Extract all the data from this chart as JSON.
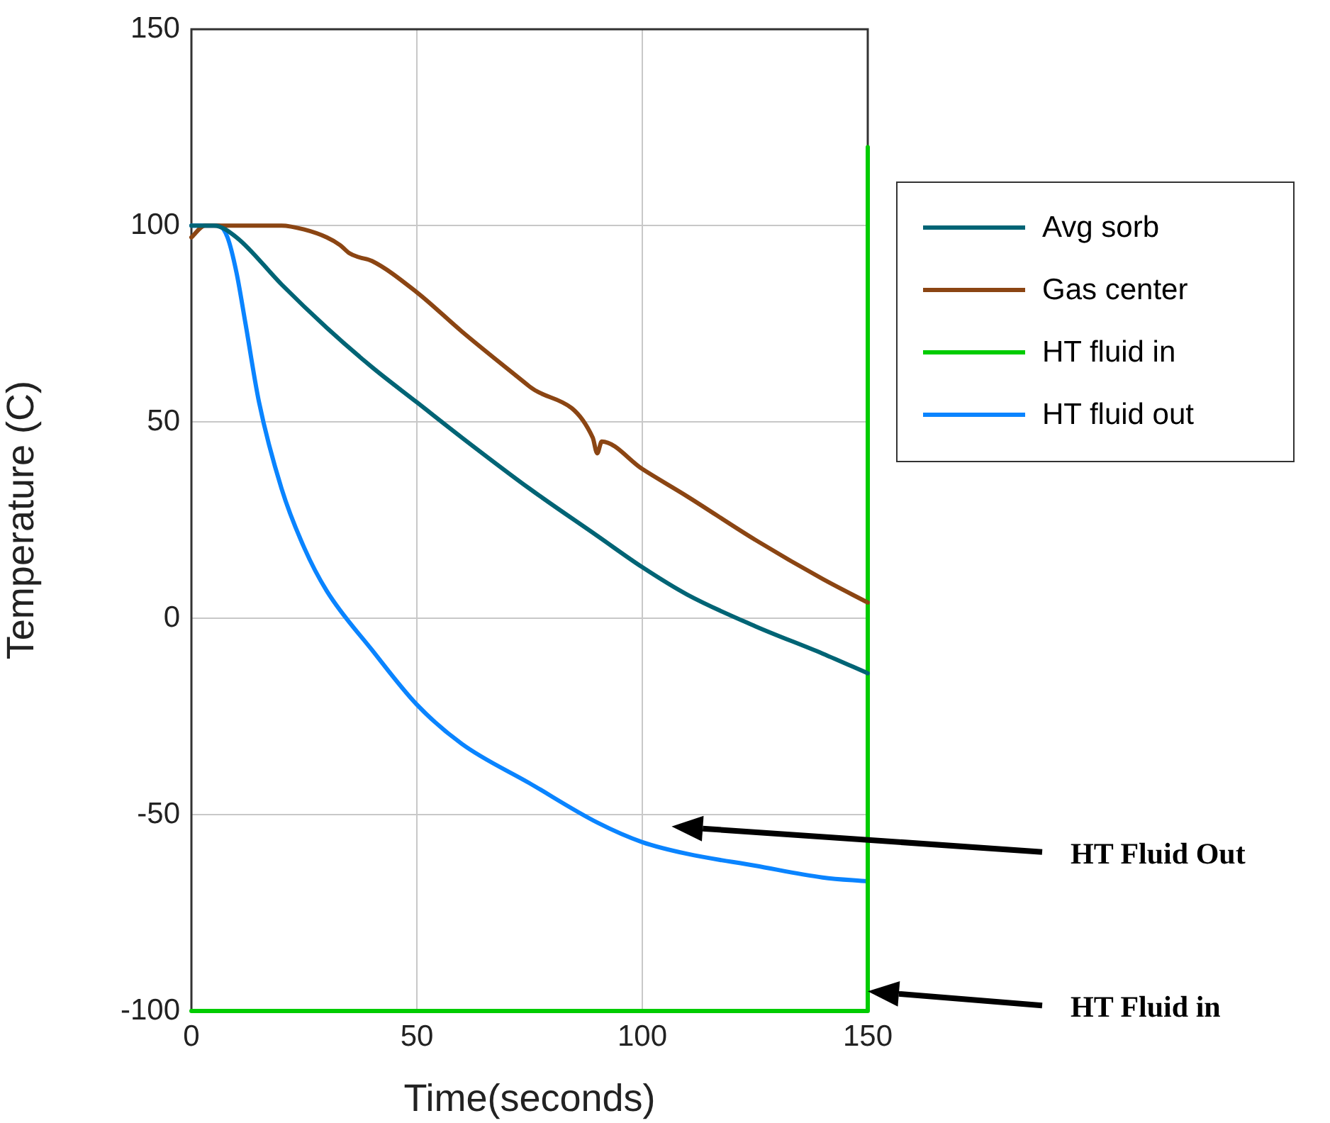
{
  "chart_data": {
    "type": "line",
    "xlabel": "Time(seconds)",
    "ylabel": "Temperature (C)",
    "xlim": [
      0,
      150
    ],
    "xticks": [
      0,
      50,
      100,
      150
    ],
    "ylim": [
      -100,
      150
    ],
    "yticks": [
      -100,
      -50,
      0,
      50,
      100,
      150
    ],
    "grid": true,
    "legend": "right",
    "marker": "none",
    "line_style": "solid",
    "series": [
      {
        "name": "Avg sorb",
        "color": "#006475",
        "x": [
          0,
          5,
          10,
          20,
          30,
          40,
          50,
          60,
          75,
          90,
          100,
          110,
          125,
          140,
          150
        ],
        "values": [
          100,
          100,
          97,
          85,
          74,
          64,
          55,
          46,
          33,
          21,
          13,
          6,
          -2,
          -9,
          -14
        ]
      },
      {
        "name": "Gas center",
        "color": "#8b4513",
        "x": [
          0,
          3,
          10,
          20,
          25,
          30,
          33,
          35,
          37,
          40,
          50,
          60,
          75,
          89,
          90,
          91,
          100,
          110,
          125,
          140,
          150
        ],
        "values": [
          97,
          100,
          100,
          100,
          99,
          97,
          95,
          93,
          92,
          91,
          83,
          73,
          59,
          46,
          42,
          45,
          38,
          31,
          20,
          10,
          4
        ]
      },
      {
        "name": "HT fluid in",
        "color": "#00cc00",
        "x": [
          0,
          150,
          150
        ],
        "values": [
          -100,
          -100,
          120
        ]
      },
      {
        "name": "HT fluid out",
        "color": "#0a84ff",
        "x": [
          0,
          3,
          6,
          8,
          10,
          12,
          15,
          20,
          25,
          30,
          40,
          50,
          60,
          75,
          90,
          100,
          110,
          125,
          140,
          150
        ],
        "values": [
          100,
          100,
          100,
          97,
          88,
          75,
          55,
          33,
          18,
          7,
          -8,
          -22,
          -32,
          -42,
          -52,
          -57,
          -60,
          -63,
          -66,
          -67
        ]
      }
    ],
    "annotations": [
      "HT Fluid Out",
      "HT Fluid in"
    ]
  }
}
